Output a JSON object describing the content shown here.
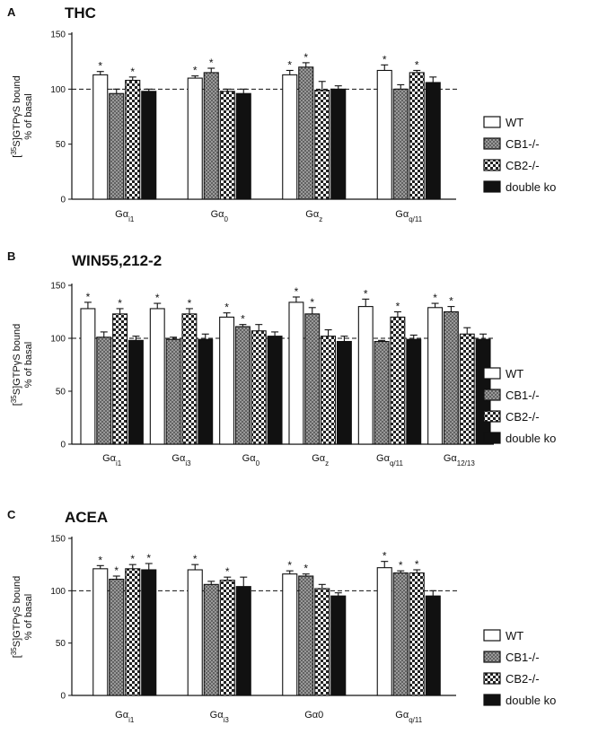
{
  "chart_data": [
    {
      "type": "bar",
      "panel": "A",
      "title": "THC",
      "ylabel_line1": "[35S]GTPγS bound",
      "ylabel_line2": "% of basal",
      "ylim": [
        0,
        150
      ],
      "yticks": [
        "0",
        "50",
        "100",
        "150"
      ],
      "baseline": 100,
      "categories": [
        {
          "main": "Gα",
          "sub": "i1"
        },
        {
          "main": "Gα",
          "sub": "0"
        },
        {
          "main": "Gα",
          "sub": "z"
        },
        {
          "main": "Gα",
          "sub": "q/11"
        }
      ],
      "series": [
        {
          "name": "WT",
          "values": [
            113,
            110,
            113,
            117
          ],
          "errors": [
            3,
            2,
            4,
            5
          ],
          "sig": [
            true,
            true,
            true,
            true
          ]
        },
        {
          "name": "CB1-/-",
          "values": [
            96,
            115,
            120,
            100
          ],
          "errors": [
            4,
            4,
            4,
            4
          ],
          "sig": [
            false,
            true,
            true,
            false
          ]
        },
        {
          "name": "CB2-/-",
          "values": [
            108,
            98,
            99,
            115
          ],
          "errors": [
            3,
            2,
            8,
            2
          ],
          "sig": [
            true,
            false,
            false,
            true
          ]
        },
        {
          "name": "double ko",
          "values": [
            98,
            96,
            100,
            106
          ],
          "errors": [
            2,
            4,
            3,
            5
          ],
          "sig": [
            false,
            false,
            false,
            false
          ]
        }
      ],
      "legend_position": "right"
    },
    {
      "type": "bar",
      "panel": "B",
      "title": "WIN55,212-2",
      "ylabel_line1": "[35S]GTPγS bound",
      "ylabel_line2": "% of basal",
      "ylim": [
        0,
        150
      ],
      "yticks": [
        "0",
        "50",
        "100",
        "150"
      ],
      "baseline": 100,
      "categories": [
        {
          "main": "Gα",
          "sub": "i1"
        },
        {
          "main": "Gα",
          "sub": "i3"
        },
        {
          "main": "Gα",
          "sub": "0"
        },
        {
          "main": "Gα",
          "sub": "z"
        },
        {
          "main": "Gα",
          "sub": "q/11"
        },
        {
          "main": "Gα",
          "sub": "12/13"
        }
      ],
      "series": [
        {
          "name": "WT",
          "values": [
            128,
            128,
            120,
            134,
            130,
            129
          ],
          "errors": [
            6,
            5,
            4,
            5,
            7,
            4
          ],
          "sig": [
            true,
            true,
            true,
            true,
            true,
            true
          ]
        },
        {
          "name": "CB1-/-",
          "values": [
            101,
            99,
            111,
            123,
            97,
            125
          ],
          "errors": [
            5,
            2,
            2,
            6,
            1,
            5
          ],
          "sig": [
            false,
            false,
            true,
            true,
            false,
            true
          ]
        },
        {
          "name": "CB2-/-",
          "values": [
            123,
            123,
            107,
            102,
            120,
            104
          ],
          "errors": [
            5,
            5,
            6,
            6,
            5,
            6
          ],
          "sig": [
            true,
            true,
            false,
            false,
            true,
            false
          ]
        },
        {
          "name": "double ko",
          "values": [
            98,
            99,
            102,
            97,
            99,
            99
          ],
          "errors": [
            4,
            5,
            4,
            5,
            4,
            5
          ],
          "sig": [
            false,
            false,
            false,
            false,
            false,
            false
          ]
        }
      ],
      "legend_position": "right"
    },
    {
      "type": "bar",
      "panel": "C",
      "title": "ACEA",
      "ylabel_line1": "[35S]GTPγS bound",
      "ylabel_line2": "% of basal",
      "ylim": [
        0,
        150
      ],
      "yticks": [
        "0",
        "50",
        "100",
        "150"
      ],
      "baseline": 100,
      "categories": [
        {
          "main": "Gα",
          "sub": "i1"
        },
        {
          "main": "Gα",
          "sub": "i3"
        },
        {
          "main": "Gα0",
          "sub": ""
        },
        {
          "main": "Gα",
          "sub": "q/11"
        }
      ],
      "series": [
        {
          "name": "WT",
          "values": [
            121,
            120,
            116,
            122
          ],
          "errors": [
            3,
            5,
            3,
            6
          ],
          "sig": [
            true,
            true,
            true,
            true
          ]
        },
        {
          "name": "CB1-/-",
          "values": [
            111,
            106,
            114,
            117
          ],
          "errors": [
            3,
            3,
            2,
            2
          ],
          "sig": [
            true,
            false,
            true,
            true
          ]
        },
        {
          "name": "CB2-/-",
          "values": [
            121,
            110,
            102,
            117
          ],
          "errors": [
            4,
            3,
            4,
            3
          ],
          "sig": [
            true,
            true,
            false,
            true
          ]
        },
        {
          "name": "double ko",
          "values": [
            120,
            104,
            95,
            95
          ],
          "errors": [
            6,
            9,
            3,
            5
          ],
          "sig": [
            true,
            false,
            false,
            false
          ]
        }
      ],
      "legend_position": "right"
    }
  ],
  "significance_marker": "*",
  "colors": {
    "wt": "#ffffff",
    "cb1": "#9a9a9a",
    "cb2": "#d8d8d8",
    "double_ko": "#111111",
    "axis": "#111111"
  }
}
